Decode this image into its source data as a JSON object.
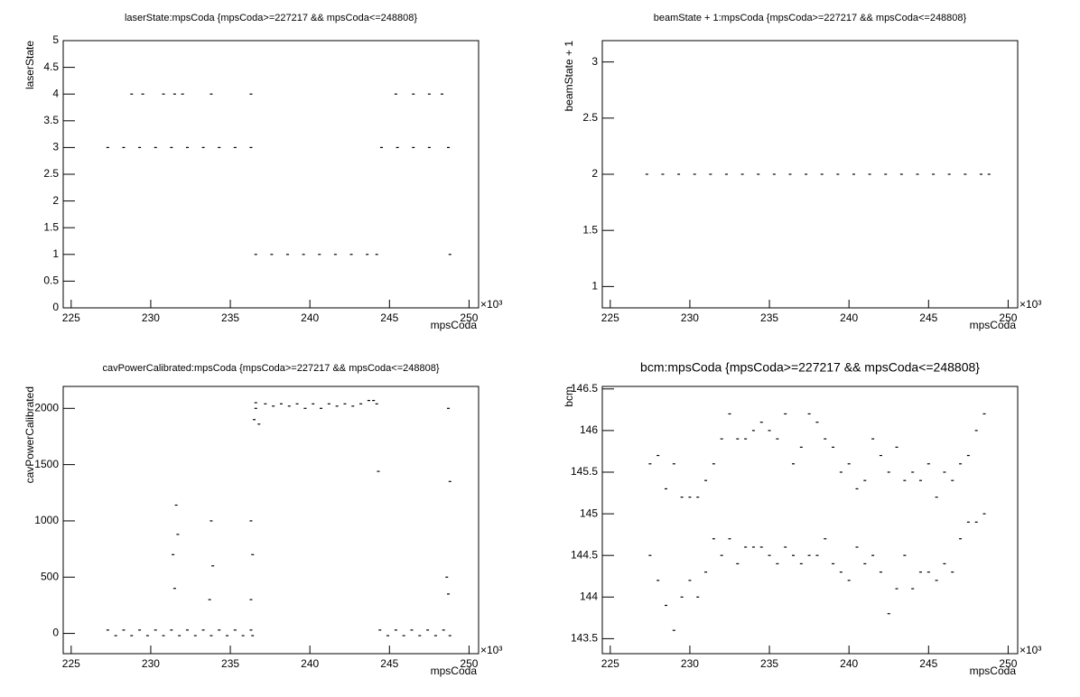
{
  "chart_data": [
    {
      "type": "scatter",
      "title": "laserState:mpsCoda {mpsCoda>=227217 && mpsCoda<=248808}",
      "x_label": "mpsCoda",
      "y_label": "laserState",
      "x_multiplier": "×10³",
      "color": "#000000",
      "x": [
        227.3,
        228.3,
        229.3,
        230.3,
        231.3,
        232.3,
        233.3,
        234.3,
        235.3,
        236.3,
        236.6,
        237.6,
        238.6,
        239.6,
        240.6,
        241.6,
        242.6,
        243.6,
        244.2,
        244.5,
        245.5,
        246.5,
        247.5,
        248.7,
        228.8,
        229.5,
        230.8,
        231.5,
        232,
        233.8,
        236.3,
        245.4,
        246.5,
        247.5,
        248.3,
        248.8
      ],
      "y": [
        3,
        3,
        3,
        3,
        3,
        3,
        3,
        3,
        3,
        3,
        1,
        1,
        1,
        1,
        1,
        1,
        1,
        1,
        1,
        3,
        3,
        3,
        3,
        3,
        4,
        4,
        4,
        4,
        4,
        4,
        4,
        4,
        4,
        4,
        4,
        1
      ],
      "xlim": [
        224.5,
        250.6
      ],
      "xticks": [
        225,
        230,
        235,
        240,
        245,
        250
      ],
      "ylim": [
        0,
        5
      ],
      "yticks": [
        0,
        0.5,
        1,
        1.5,
        2,
        2.5,
        3,
        3.5,
        4,
        4.5,
        5
      ]
    },
    {
      "type": "scatter",
      "title": "beamState + 1:mpsCoda {mpsCoda>=227217 && mpsCoda<=248808}",
      "x_label": "mpsCoda",
      "y_label": "beamState + 1",
      "x_multiplier": "×10³",
      "color": "#000000",
      "x": [
        227.3,
        228.3,
        229.3,
        230.3,
        231.3,
        232.3,
        233.3,
        234.3,
        235.3,
        236.3,
        237.3,
        238.3,
        239.3,
        240.3,
        241.3,
        242.3,
        243.3,
        244.3,
        245.3,
        246.3,
        247.3,
        248.3,
        248.8
      ],
      "y": [
        2,
        2,
        2,
        2,
        2,
        2,
        2,
        2,
        2,
        2,
        2,
        2,
        2,
        2,
        2,
        2,
        2,
        2,
        2,
        2,
        2,
        2,
        2
      ],
      "xlim": [
        224.5,
        250.6
      ],
      "xticks": [
        225,
        230,
        235,
        240,
        245,
        250
      ],
      "ylim": [
        0.81,
        3.19
      ],
      "yticks": [
        1,
        1.5,
        2,
        2.5,
        3
      ]
    },
    {
      "type": "scatter",
      "title": "cavPowerCalibrated:mpsCoda {mpsCoda>=227217 && mpsCoda<=248808}",
      "x_label": "mpsCoda",
      "y_label": "cavPowerCalibrated",
      "x_multiplier": "×10³",
      "color": "#000000",
      "x": [
        227.3,
        228.3,
        229.3,
        230.3,
        231.3,
        232.3,
        233.3,
        234.3,
        235.3,
        236.3,
        227.8,
        228.8,
        229.8,
        230.8,
        231.8,
        232.8,
        233.8,
        234.8,
        235.8,
        236.4,
        231.4,
        231.6,
        231.7,
        231.5,
        233.8,
        233.9,
        233.7,
        236.3,
        236.4,
        236.3,
        236.5,
        236.6,
        236.6,
        236.8,
        237.2,
        238.2,
        239.2,
        240.2,
        241.2,
        242.2,
        243.2,
        244.2,
        237.7,
        238.7,
        239.7,
        240.7,
        241.7,
        242.7,
        243.7,
        244.0,
        244.4,
        245.4,
        246.4,
        247.4,
        248.4,
        244.9,
        245.9,
        246.9,
        247.9,
        248.8,
        248.7,
        248.6,
        248.7,
        248.8,
        244.3
      ],
      "y": [
        30,
        30,
        30,
        30,
        30,
        30,
        30,
        30,
        30,
        30,
        -20,
        -20,
        -20,
        -20,
        -20,
        -20,
        -20,
        -20,
        -20,
        -20,
        700,
        1140,
        880,
        400,
        1000,
        600,
        300,
        1000,
        700,
        300,
        1900,
        2000,
        2050,
        1860,
        2040,
        2040,
        2040,
        2040,
        2040,
        2040,
        2040,
        2040,
        2020,
        2020,
        2000,
        2000,
        2020,
        2020,
        2070,
        2070,
        30,
        30,
        30,
        30,
        30,
        -20,
        -20,
        -20,
        -20,
        -20,
        2000,
        500,
        350,
        1350,
        1440
      ],
      "xlim": [
        224.5,
        250.6
      ],
      "xticks": [
        225,
        230,
        235,
        240,
        245,
        250
      ],
      "ylim": [
        -180,
        2195
      ],
      "yticks": [
        0,
        500,
        1000,
        1500,
        2000
      ]
    },
    {
      "type": "scatter",
      "title": "bcm:mpsCoda {mpsCoda>=227217 && mpsCoda<=248808}",
      "x_label": "mpsCoda",
      "y_label": "bcm",
      "x_multiplier": "×10³",
      "color": "#000000",
      "x": [
        227.5,
        228,
        228.5,
        229,
        229.5,
        230,
        230.5,
        231,
        231.5,
        232,
        232.5,
        233,
        233.5,
        234,
        234.5,
        235,
        235.5,
        236,
        236.5,
        237,
        237.5,
        238,
        238.5,
        239,
        239.5,
        240,
        240.5,
        241,
        241.5,
        242,
        242.5,
        243,
        243.5,
        244,
        244.5,
        245,
        245.5,
        246,
        246.5,
        247,
        247.5,
        248,
        248.5,
        227.5,
        228,
        228.5,
        229,
        229.5,
        230,
        230.5,
        231,
        231.5,
        232,
        232.5,
        233,
        233.5,
        234,
        234.5,
        235,
        235.5,
        236,
        236.5,
        237,
        237.5,
        238,
        238.5,
        239,
        239.5,
        240,
        240.5,
        241,
        241.5,
        242,
        242.5,
        243,
        243.5,
        244,
        244.5,
        245,
        245.5,
        246,
        246.5,
        247,
        247.5,
        248,
        248.5
      ],
      "y": [
        145.6,
        145.7,
        145.3,
        145.6,
        145.2,
        145.2,
        145.2,
        145.4,
        145.6,
        145.9,
        146.2,
        145.9,
        145.9,
        146.0,
        146.1,
        146.0,
        145.9,
        146.2,
        145.6,
        145.8,
        146.2,
        146.1,
        145.9,
        145.8,
        145.5,
        145.6,
        145.3,
        145.4,
        145.9,
        145.7,
        145.5,
        145.8,
        145.4,
        145.5,
        145.4,
        145.6,
        145.2,
        145.5,
        145.4,
        145.6,
        145.7,
        146.0,
        146.2,
        144.5,
        144.2,
        143.9,
        143.6,
        144.0,
        144.2,
        144.0,
        144.3,
        144.7,
        144.5,
        144.7,
        144.4,
        144.6,
        144.6,
        144.6,
        144.5,
        144.4,
        144.6,
        144.5,
        144.4,
        144.5,
        144.5,
        144.7,
        144.4,
        144.3,
        144.2,
        144.6,
        144.4,
        144.5,
        144.3,
        143.8,
        144.1,
        144.5,
        144.1,
        144.3,
        144.3,
        144.2,
        144.4,
        144.3,
        144.7,
        144.9,
        144.9,
        145.0
      ],
      "xlim": [
        224.5,
        250.6
      ],
      "xticks": [
        225,
        230,
        235,
        240,
        245,
        250
      ],
      "ylim": [
        143.32,
        146.53
      ],
      "yticks": [
        143.5,
        144,
        144.5,
        145,
        145.5,
        146,
        146.5
      ]
    }
  ]
}
